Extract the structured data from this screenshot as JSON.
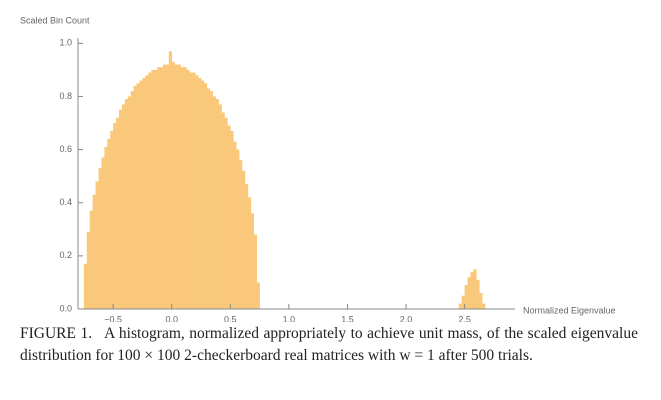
{
  "chart_data": {
    "type": "histogram",
    "ylabel": "Scaled Bin Count",
    "xlabel": "Normalized Eigenvalue",
    "color": "#f9c87b",
    "bins": [
      -0.75,
      -0.725,
      -0.7,
      -0.675,
      -0.65,
      -0.625,
      -0.6,
      -0.575,
      -0.55,
      -0.525,
      -0.5,
      -0.475,
      -0.45,
      -0.425,
      -0.4,
      -0.375,
      -0.35,
      -0.325,
      -0.3,
      -0.275,
      -0.25,
      -0.225,
      -0.2,
      -0.175,
      -0.15,
      -0.125,
      -0.1,
      -0.075,
      -0.05,
      -0.025,
      0,
      0.025,
      0.05,
      0.075,
      0.1,
      0.125,
      0.15,
      0.175,
      0.2,
      0.225,
      0.25,
      0.275,
      0.3,
      0.325,
      0.35,
      0.375,
      0.4,
      0.425,
      0.45,
      0.475,
      0.5,
      0.525,
      0.55,
      0.575,
      0.6,
      0.625,
      0.65,
      0.675,
      0.7,
      0.725,
      0.75,
      0.775,
      0.8,
      0.825,
      0.85,
      0.875,
      0.9,
      0.925,
      0.95,
      0.975,
      1,
      1.025,
      1.05,
      1.075,
      1.1,
      1.125,
      1.15,
      1.175,
      1.2,
      1.225,
      1.25,
      1.275,
      1.3,
      1.325,
      1.35,
      1.375,
      1.4,
      1.425,
      1.45,
      1.475,
      1.5,
      1.525,
      1.55,
      1.575,
      1.6,
      1.625,
      1.65,
      1.675,
      1.7,
      1.725,
      1.75,
      1.775,
      1.8,
      1.825,
      1.85,
      1.875,
      1.9,
      1.925,
      1.95,
      1.975,
      2,
      2.025,
      2.05,
      2.075,
      2.1,
      2.125,
      2.15,
      2.175,
      2.2,
      2.225,
      2.25,
      2.275,
      2.3,
      2.325,
      2.35,
      2.375,
      2.4,
      2.425,
      2.45,
      2.475,
      2.5,
      2.525,
      2.55,
      2.575,
      2.6,
      2.625,
      2.65,
      2.675
    ],
    "values": [
      0.17,
      0.29,
      0.37,
      0.43,
      0.48,
      0.53,
      0.57,
      0.61,
      0.64,
      0.67,
      0.7,
      0.72,
      0.75,
      0.77,
      0.79,
      0.8,
      0.82,
      0.84,
      0.85,
      0.86,
      0.87,
      0.88,
      0.89,
      0.9,
      0.9,
      0.91,
      0.91,
      0.92,
      0.92,
      0.97,
      0.93,
      0.92,
      0.92,
      0.91,
      0.91,
      0.9,
      0.89,
      0.89,
      0.88,
      0.87,
      0.86,
      0.85,
      0.83,
      0.82,
      0.8,
      0.79,
      0.77,
      0.74,
      0.72,
      0.69,
      0.67,
      0.63,
      0.6,
      0.56,
      0.52,
      0.47,
      0.42,
      0.36,
      0.28,
      0.1,
      0,
      0,
      0,
      0,
      0,
      0,
      0,
      0,
      0,
      0,
      0,
      0,
      0,
      0,
      0,
      0,
      0,
      0,
      0,
      0,
      0,
      0,
      0,
      0,
      0,
      0,
      0,
      0,
      0,
      0,
      0,
      0,
      0,
      0,
      0,
      0,
      0,
      0,
      0,
      0,
      0,
      0,
      0,
      0,
      0,
      0,
      0,
      0,
      0,
      0,
      0,
      0,
      0,
      0,
      0,
      0,
      0,
      0,
      0,
      0,
      0,
      0,
      0,
      0,
      0,
      0,
      0,
      0,
      0.02,
      0.05,
      0.09,
      0.12,
      0.14,
      0.15,
      0.11,
      0.06,
      0.02
    ],
    "xlim": [
      -0.8,
      2.93
    ],
    "ylim": [
      0,
      1.02
    ],
    "xticks": [
      {
        "value": -0.5,
        "label": "−0.5"
      },
      {
        "value": 0,
        "label": "0.0"
      },
      {
        "value": 0.5,
        "label": "0.5"
      },
      {
        "value": 1,
        "label": "1.0"
      },
      {
        "value": 1.5,
        "label": "1.5"
      },
      {
        "value": 2,
        "label": "2.0"
      },
      {
        "value": 2.5,
        "label": "2.5"
      }
    ],
    "yticks": [
      {
        "value": 0,
        "label": "0.0"
      },
      0.2,
      0.4,
      0.6,
      0.8,
      {
        "value": 1,
        "label": "1.0"
      }
    ]
  },
  "caption": {
    "label": "FIGURE 1.",
    "text": "A histogram, normalized appropriately to achieve unit mass, of the scaled eigenvalue distribution for 100 × 100 2-checkerboard real matrices with w = 1 after 500 trials."
  }
}
